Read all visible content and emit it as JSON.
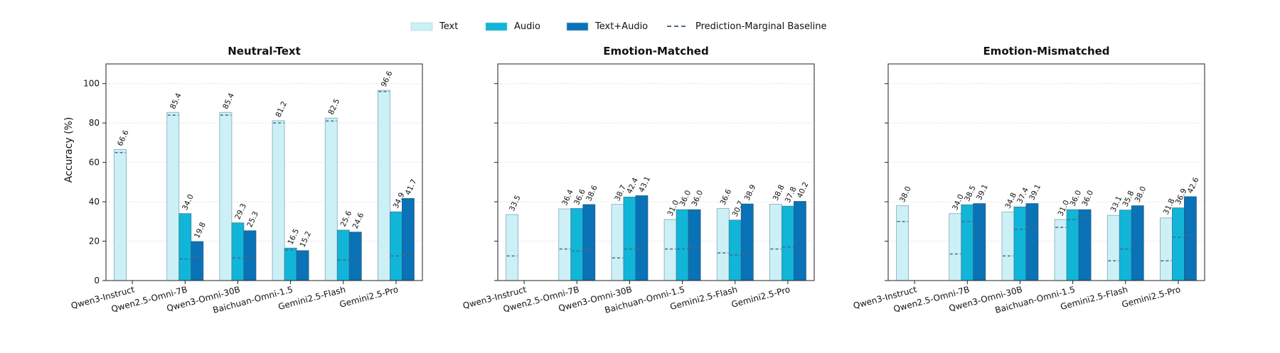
{
  "legend": {
    "placement": "top-center",
    "items": [
      {
        "label": "Text",
        "kind": "bar",
        "color": "#cdf0f7"
      },
      {
        "label": "Audio",
        "kind": "bar",
        "color": "#11b5d8"
      },
      {
        "label": "Text+Audio",
        "kind": "bar",
        "color": "#0a72b6"
      },
      {
        "label": "Prediction-Marginal Baseline",
        "kind": "dash",
        "color": "#456a86"
      }
    ]
  },
  "ylabel": "Accuracy (%)",
  "chart_data": [
    {
      "type": "bar",
      "title": "Neutral-Text",
      "ylim": [
        0,
        110
      ],
      "yticks": [
        0,
        20,
        40,
        60,
        80,
        100
      ],
      "grid": true,
      "categories": [
        "Qwen3-Instruct",
        "Qwen2.5-Omni-7B",
        "Qwen3-Omni-30B",
        "Baichuan-Omni-1.5",
        "Gemini2.5-Flash",
        "Gemini2.5-Pro"
      ],
      "series": [
        {
          "name": "Text",
          "values": [
            66.6,
            85.4,
            85.4,
            81.2,
            82.5,
            96.6
          ],
          "labels": [
            "66.6",
            "85.4",
            "85.4",
            "81.2",
            "82.5",
            "96.6"
          ],
          "baseline": [
            65,
            84,
            84,
            80,
            81,
            96
          ]
        },
        {
          "name": "Audio",
          "values": [
            null,
            34.0,
            29.3,
            16.5,
            25.6,
            34.9
          ],
          "labels": [
            "",
            "34.0",
            "29.3",
            "16.5",
            "25.6",
            "34.9"
          ],
          "baseline": [
            null,
            11,
            11.5,
            15.5,
            10.5,
            12.5
          ]
        },
        {
          "name": "Text+Audio",
          "values": [
            null,
            19.8,
            25.3,
            15.2,
            24.6,
            41.7
          ],
          "labels": [
            "",
            "19.8",
            "25.3",
            "15.2",
            "24.6",
            "41.7"
          ],
          "baseline": [
            null,
            12,
            12,
            14,
            11,
            13
          ]
        }
      ]
    },
    {
      "type": "bar",
      "title": "Emotion-Matched",
      "ylim": [
        0,
        110
      ],
      "yticks": [
        0,
        20,
        40,
        60,
        80,
        100
      ],
      "grid": true,
      "categories": [
        "Qwen3-Instruct",
        "Qwen2.5-Omni-7B",
        "Qwen3-Omni-30B",
        "Baichuan-Omni-1.5",
        "Gemini2.5-Flash",
        "Gemini2.5-Pro"
      ],
      "series": [
        {
          "name": "Text",
          "values": [
            33.5,
            36.4,
            38.7,
            31.0,
            36.6,
            38.8
          ],
          "labels": [
            "33.5",
            "36.4",
            "38.7",
            "31.0",
            "36.6",
            "38.8"
          ],
          "baseline": [
            12.5,
            16,
            11.5,
            16,
            14,
            16
          ]
        },
        {
          "name": "Audio",
          "values": [
            null,
            36.6,
            42.4,
            36.0,
            30.7,
            37.8
          ],
          "labels": [
            "",
            "36.6",
            "42.4",
            "36.0",
            "30.7",
            "37.8"
          ],
          "baseline": [
            null,
            15,
            16,
            16,
            13,
            17
          ]
        },
        {
          "name": "Text+Audio",
          "values": [
            null,
            38.6,
            43.1,
            36.0,
            38.9,
            40.2
          ],
          "labels": [
            "",
            "38.6",
            "43.1",
            "36.0",
            "38.9",
            "40.2"
          ],
          "baseline": [
            null,
            16,
            16,
            17,
            14,
            15
          ]
        }
      ]
    },
    {
      "type": "bar",
      "title": "Emotion-Mismatched",
      "ylim": [
        0,
        110
      ],
      "yticks": [
        0,
        20,
        40,
        60,
        80,
        100
      ],
      "grid": true,
      "categories": [
        "Qwen3-Instruct",
        "Qwen2.5-Omni-7B",
        "Qwen3-Omni-30B",
        "Baichuan-Omni-1.5",
        "Gemini2.5-Flash",
        "Gemini2.5-Pro"
      ],
      "series": [
        {
          "name": "Text",
          "values": [
            38.0,
            34.0,
            34.8,
            31.0,
            33.1,
            31.8
          ],
          "labels": [
            "38.0",
            "34.0",
            "34.8",
            "31.0",
            "33.1",
            "31.8"
          ],
          "baseline": [
            30,
            13.5,
            12.5,
            27,
            10,
            10
          ]
        },
        {
          "name": "Audio",
          "values": [
            null,
            38.5,
            37.4,
            36.0,
            35.8,
            36.9
          ],
          "labels": [
            "",
            "38.5",
            "37.4",
            "36.0",
            "35.8",
            "36.9"
          ],
          "baseline": [
            null,
            30,
            26,
            31,
            16,
            22
          ]
        },
        {
          "name": "Text+Audio",
          "values": [
            null,
            39.1,
            39.1,
            36.0,
            38.0,
            42.6
          ],
          "labels": [
            "",
            "39.1",
            "39.1",
            "36.0",
            "38.0",
            "42.6"
          ],
          "baseline": [
            null,
            24,
            27,
            32,
            19,
            23
          ]
        }
      ]
    }
  ]
}
